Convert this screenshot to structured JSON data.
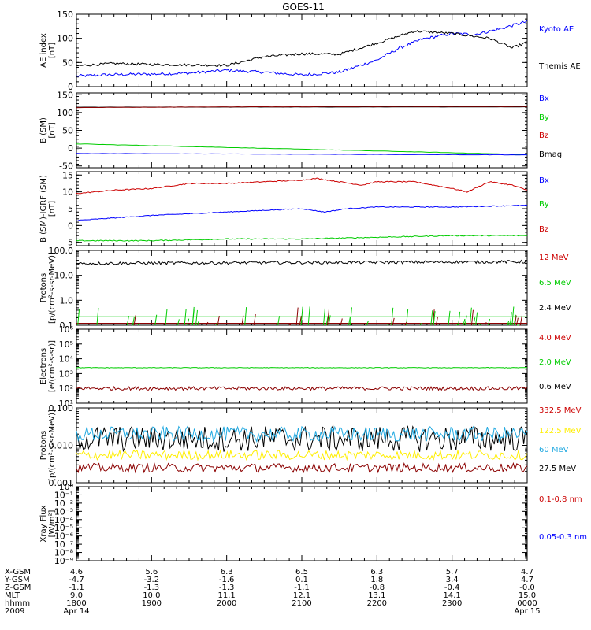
{
  "title": "GOES-11",
  "colors": {
    "black": "#000000",
    "blue": "#0000ff",
    "red": "#cc0000",
    "darkred": "#8b0000",
    "green": "#00cc00",
    "yellow": "#ffee00",
    "cyan": "#1fa8e0"
  },
  "chart_data": [
    {
      "id": "ae",
      "type": "line",
      "ylabel_lines": [
        "AE index",
        "[nT]"
      ],
      "ylim": [
        0,
        150
      ],
      "scale": "linear",
      "yticks": [
        0,
        50,
        100,
        150
      ],
      "ytick_labels": [
        "0",
        "50",
        "100",
        "150"
      ],
      "series": [
        {
          "name": "Kyoto AE",
          "color": "#0000ff",
          "x": [
            0,
            0.5,
            1,
            1.5,
            2,
            2.5,
            3,
            3.5,
            4,
            4.3,
            4.6,
            5,
            5.3,
            5.6,
            6
          ],
          "y": [
            22,
            25,
            26,
            28,
            34,
            30,
            24,
            30,
            55,
            80,
            98,
            110,
            108,
            118,
            135
          ]
        },
        {
          "name": "Themis AE",
          "color": "#000000",
          "x": [
            0,
            0.5,
            1,
            1.5,
            2,
            2.5,
            3,
            3.5,
            4,
            4.5,
            5,
            5.5,
            5.8,
            6
          ],
          "y": [
            43,
            48,
            46,
            45,
            44,
            62,
            68,
            67,
            90,
            115,
            110,
            100,
            80,
            92
          ]
        }
      ],
      "legend": [
        {
          "text": "Kyoto AE",
          "color": "#0000ff"
        },
        {
          "text": "Themis AE",
          "color": "#000000"
        }
      ]
    },
    {
      "id": "bsm",
      "type": "line",
      "ylabel_lines": [
        "B (SM)",
        "[nT]"
      ],
      "ylim": [
        -55,
        155
      ],
      "scale": "linear",
      "yticks": [
        -50,
        0,
        50,
        100,
        150
      ],
      "ytick_labels": [
        "-50",
        "0",
        "50",
        "100",
        "150"
      ],
      "series": [
        {
          "name": "Bmag",
          "color": "#000000",
          "x": [
            0,
            6
          ],
          "y": [
            115,
            116
          ]
        },
        {
          "name": "Bz",
          "color": "#8b0000",
          "x": [
            0,
            2,
            4,
            6
          ],
          "y": [
            114,
            116,
            117,
            117
          ]
        },
        {
          "name": "By",
          "color": "#00cc00",
          "x": [
            0,
            6
          ],
          "y": [
            12,
            -18
          ]
        },
        {
          "name": "Bx",
          "color": "#0000ff",
          "x": [
            0,
            3,
            6
          ],
          "y": [
            -15,
            -17,
            -19
          ]
        }
      ],
      "legend": [
        {
          "text": "Bx",
          "color": "#0000ff"
        },
        {
          "text": "By",
          "color": "#00cc00"
        },
        {
          "text": "Bz",
          "color": "#cc0000"
        },
        {
          "text": "Bmag",
          "color": "#000000"
        }
      ]
    },
    {
      "id": "bigrf",
      "type": "line",
      "ylabel_lines": [
        "B (SM)-IGRF (SM)",
        "[nT]"
      ],
      "ylim": [
        -6,
        16
      ],
      "scale": "linear",
      "yticks": [
        -5,
        0,
        5,
        10,
        15
      ],
      "ytick_labels": [
        "-5",
        "0",
        "5",
        "10",
        "15"
      ],
      "series": [
        {
          "name": "Bz",
          "color": "#cc0000",
          "x": [
            0,
            0.5,
            1,
            1.5,
            2,
            2.5,
            3,
            3.2,
            3.5,
            3.8,
            4,
            4.5,
            5,
            5.2,
            5.5,
            5.8,
            6
          ],
          "y": [
            9.5,
            10.5,
            11,
            12.5,
            12.5,
            13,
            13.5,
            14,
            13,
            12,
            13,
            13,
            11,
            10,
            13,
            12,
            10.5
          ]
        },
        {
          "name": "Bx",
          "color": "#0000ff",
          "x": [
            0,
            1,
            2,
            3,
            3.3,
            3.6,
            4,
            5,
            6
          ],
          "y": [
            1.5,
            3,
            4,
            5,
            4,
            5,
            5.5,
            5.5,
            6
          ]
        },
        {
          "name": "By",
          "color": "#00cc00",
          "x": [
            0,
            1,
            2,
            3,
            4,
            5,
            6
          ],
          "y": [
            -4.5,
            -4.5,
            -4,
            -4,
            -3.5,
            -3,
            -3
          ]
        }
      ],
      "legend": [
        {
          "text": "Bx",
          "color": "#0000ff"
        },
        {
          "text": "By",
          "color": "#00cc00"
        },
        {
          "text": "Bz",
          "color": "#cc0000"
        }
      ]
    },
    {
      "id": "protons_low",
      "type": "line",
      "ylabel_lines": [
        "Protons",
        "[p/(cm²-s-sr-MeV)]"
      ],
      "ylim": [
        0.1,
        100
      ],
      "scale": "log",
      "yticks": [
        0.1,
        1,
        10,
        100
      ],
      "ytick_labels": [
        "0.1",
        "1.0",
        "10.0",
        "100.0"
      ],
      "series": [
        {
          "name": "2.4 MeV",
          "color": "#000000",
          "x": [
            0,
            6
          ],
          "y": [
            30,
            35
          ]
        },
        {
          "name": "6.5 MeV",
          "color": "#00cc00",
          "x": [
            0,
            6
          ],
          "y": [
            0.22,
            0.22
          ]
        },
        {
          "name": "12 MeV",
          "color": "#8b0000",
          "x": [
            0,
            6
          ],
          "y": [
            0.12,
            0.12
          ]
        }
      ],
      "legend": [
        {
          "text": "12 MeV",
          "color": "#cc0000"
        },
        {
          "text": "6.5 MeV",
          "color": "#00cc00"
        },
        {
          "text": "2.4 MeV",
          "color": "#000000"
        }
      ]
    },
    {
      "id": "electrons",
      "type": "line",
      "ylabel_lines": [
        "Electrons",
        "[e/(cm²-s-sr)]"
      ],
      "ylim": [
        10,
        1000000
      ],
      "scale": "log",
      "yticks": [
        10,
        100,
        1000,
        10000,
        100000,
        1000000
      ],
      "ytick_labels": [
        "10¹",
        "10²",
        "10³",
        "10⁴",
        "10⁵",
        "10⁶"
      ],
      "series": [
        {
          "name": "2.0 MeV",
          "color": "#00cc00",
          "x": [
            0,
            6
          ],
          "y": [
            2500,
            2500
          ]
        },
        {
          "name": "0.6 MeV",
          "color": "#8b0000",
          "x": [
            0,
            6
          ],
          "y": [
            100,
            100
          ]
        }
      ],
      "legend": [
        {
          "text": "4.0 MeV",
          "color": "#cc0000"
        },
        {
          "text": "2.0 MeV",
          "color": "#00cc00"
        },
        {
          "text": "0.6 MeV",
          "color": "#000000"
        }
      ]
    },
    {
      "id": "protons_high",
      "type": "line",
      "ylabel_lines": [
        "Protons",
        "[p/(cm²-s-sr-MeV)]"
      ],
      "ylim": [
        0.001,
        0.1
      ],
      "scale": "log",
      "yticks": [
        0.001,
        0.01,
        0.1
      ],
      "ytick_labels": [
        "0.001",
        "0.010",
        "0.100"
      ],
      "series": [
        {
          "name": "332.5 MeV",
          "color": "#000000",
          "x": [
            0,
            6
          ],
          "y": [
            0.015,
            0.015
          ]
        },
        {
          "name": "60 MeV",
          "color": "#1fa8e0",
          "x": [
            0,
            6
          ],
          "y": [
            0.02,
            0.02
          ]
        },
        {
          "name": "122.5 MeV",
          "color": "#ffee00",
          "x": [
            0,
            6
          ],
          "y": [
            0.0055,
            0.0055
          ]
        },
        {
          "name": "27.5 MeV",
          "color": "#8b0000",
          "x": [
            0,
            6
          ],
          "y": [
            0.0025,
            0.0025
          ]
        }
      ],
      "legend": [
        {
          "text": "332.5 MeV",
          "color": "#cc0000"
        },
        {
          "text": "122.5 MeV",
          "color": "#ffee00"
        },
        {
          "text": "60 MeV",
          "color": "#1fa8e0"
        },
        {
          "text": "27.5 MeV",
          "color": "#000000"
        }
      ]
    },
    {
      "id": "xray",
      "type": "line",
      "ylabel_lines": [
        "Xray Flux",
        "[W/m²]"
      ],
      "ylim": [
        1e-09,
        1
      ],
      "scale": "log",
      "yticks": [
        1,
        0.1,
        0.01,
        0.001,
        0.0001,
        1e-05,
        1e-06,
        1e-07,
        1e-08,
        1e-09
      ],
      "ytick_labels": [
        "10⁰",
        "10⁻¹",
        "10⁻²",
        "10⁻³",
        "10⁻⁴",
        "10⁻⁵",
        "10⁻⁶",
        "10⁻⁷",
        "10⁻⁸",
        "10⁻⁹"
      ],
      "series": [],
      "legend": [
        {
          "text": "0.1-0.8 nm",
          "color": "#cc0000"
        },
        {
          "text": "0.05-0.3 nm",
          "color": "#0000ff"
        }
      ]
    }
  ],
  "axis_table": {
    "row_labels": [
      "X-GSM",
      "Y-GSM",
      "Z-GSM",
      "MLT",
      "hhmm",
      "2009"
    ],
    "columns": [
      [
        "4.6",
        "-4.7",
        "-1.1",
        "9.0",
        "1800",
        "Apr 14"
      ],
      [
        "5.6",
        "-3.2",
        "-1.3",
        "10.0",
        "1900",
        ""
      ],
      [
        "6.3",
        "-1.6",
        "-1.3",
        "11.1",
        "2000",
        ""
      ],
      [
        "6.5",
        "0.1",
        "-1.1",
        "12.1",
        "2100",
        ""
      ],
      [
        "6.3",
        "1.8",
        "-0.8",
        "13.1",
        "2200",
        ""
      ],
      [
        "5.7",
        "3.4",
        "-0.4",
        "14.1",
        "2300",
        ""
      ],
      [
        "4.7",
        "4.7",
        "-0.0",
        "15.0",
        "0000",
        "Apr 15"
      ]
    ]
  }
}
